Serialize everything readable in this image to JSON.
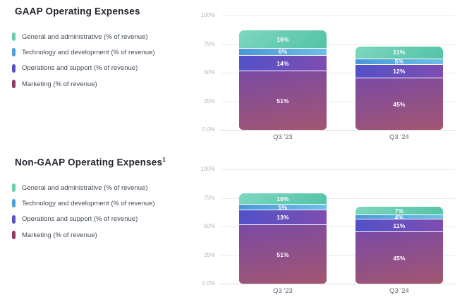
{
  "page": {
    "background": "#ffffff"
  },
  "chart_data": [
    {
      "type": "bar",
      "stacked": true,
      "title": "GAAP Operating Expenses",
      "title_footnote": "",
      "categories": [
        "Q3 '23",
        "Q3 '24"
      ],
      "stack_order": "bottom-to-top",
      "series": [
        {
          "name": "Marketing (% of revenue)",
          "values": [
            51,
            45
          ],
          "gradient": {
            "angle": "170deg",
            "from": "#7b4aa4",
            "to": "#a25670"
          },
          "swatch": "#8e3a63"
        },
        {
          "name": "Operations and support (% of revenue)",
          "values": [
            14,
            12
          ],
          "gradient": {
            "angle": "90deg",
            "from": "#5351c9",
            "to": "#7e4db0"
          },
          "swatch": "#5a50c8"
        },
        {
          "name": "Technology and development (% of revenue)",
          "values": [
            6,
            5
          ],
          "gradient": {
            "angle": "90deg",
            "from": "#4b97d6",
            "to": "#6cc0e5"
          },
          "swatch": "#4f9fdb"
        },
        {
          "name": "General and administrative (% of revenue)",
          "values": [
            16,
            11
          ],
          "gradient": {
            "angle": "140deg",
            "from": "#7dd7bf",
            "to": "#54c3a6"
          },
          "swatch": "#68ceb2"
        }
      ],
      "legend": [
        "General and administrative (% of revenue)",
        "Technology and development (% of revenue)",
        "Operations and support (% of revenue)",
        "Marketing (% of revenue)"
      ],
      "value_label_suffix": "%",
      "y_ticks": [
        {
          "label": "100%",
          "value": 100
        },
        {
          "label": "75%",
          "value": 75
        },
        {
          "label": "50%",
          "value": 50
        },
        {
          "label": "25%",
          "value": 25
        },
        {
          "label": "0.0%",
          "value": 0
        }
      ],
      "ylim": [
        0,
        100
      ],
      "grid": true,
      "legend_position": "left"
    },
    {
      "type": "bar",
      "stacked": true,
      "title": "Non-GAAP Operating Expenses",
      "title_footnote": "1",
      "categories": [
        "Q3 '23",
        "Q3 '24"
      ],
      "stack_order": "bottom-to-top",
      "series": [
        {
          "name": "Marketing (% of revenue)",
          "values": [
            51,
            45
          ],
          "gradient": {
            "angle": "170deg",
            "from": "#7b4aa4",
            "to": "#a25670"
          },
          "swatch": "#8e3a63"
        },
        {
          "name": "Operations and support (% of revenue)",
          "values": [
            13,
            11
          ],
          "gradient": {
            "angle": "90deg",
            "from": "#5351c9",
            "to": "#7e4db0"
          },
          "swatch": "#5a50c8"
        },
        {
          "name": "Technology and development (% of revenue)",
          "values": [
            5,
            4
          ],
          "gradient": {
            "angle": "90deg",
            "from": "#4b97d6",
            "to": "#6cc0e5"
          },
          "swatch": "#4f9fdb"
        },
        {
          "name": "General and administrative (% of revenue)",
          "values": [
            10,
            7
          ],
          "gradient": {
            "angle": "140deg",
            "from": "#7dd7bf",
            "to": "#54c3a6"
          },
          "swatch": "#68ceb2"
        }
      ],
      "legend": [
        "General and administrative (% of revenue)",
        "Technology and development (% of revenue)",
        "Operations and support (% of revenue)",
        "Marketing (% of revenue)"
      ],
      "value_label_suffix": "%",
      "y_ticks": [
        {
          "label": "100%",
          "value": 100
        },
        {
          "label": "75%",
          "value": 75
        },
        {
          "label": "50%",
          "value": 50
        },
        {
          "label": "25%",
          "value": 25
        },
        {
          "label": "0.0%",
          "value": 0
        }
      ],
      "ylim": [
        0,
        100
      ],
      "grid": true,
      "legend_position": "left"
    }
  ]
}
